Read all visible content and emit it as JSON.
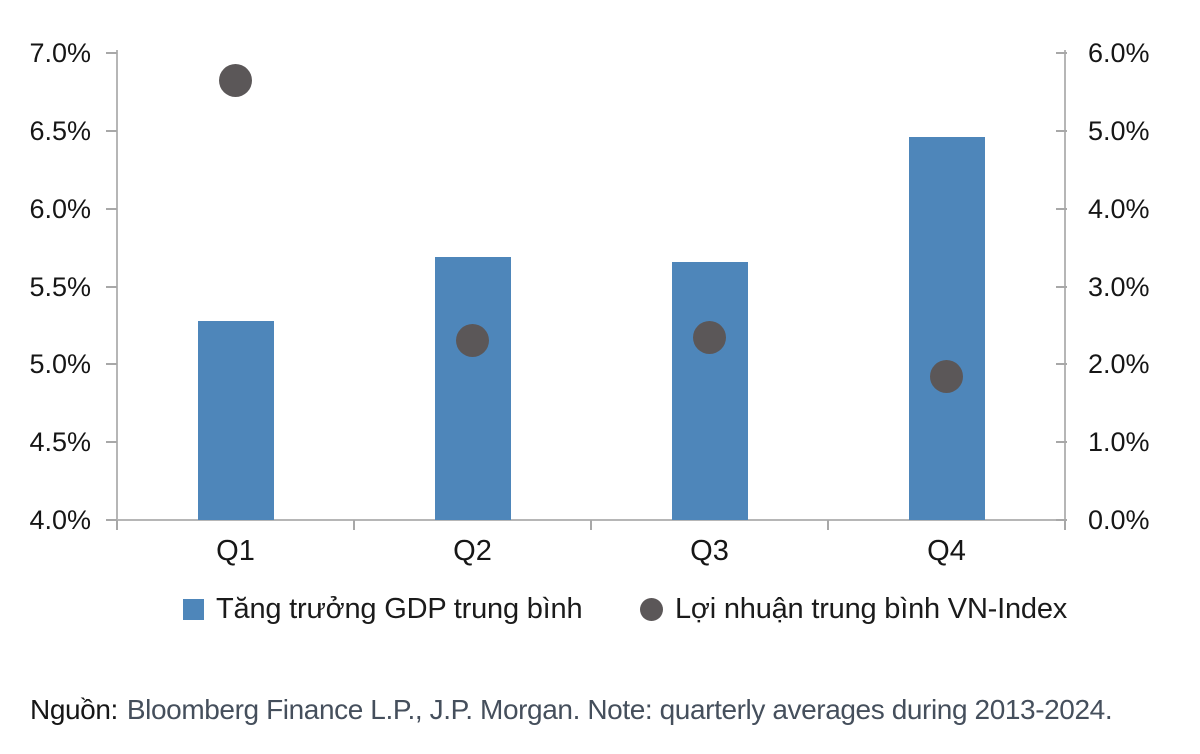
{
  "chart_data": {
    "type": "bar",
    "subtype": "combo-bar-scatter-dual-axis",
    "categories": [
      "Q1",
      "Q2",
      "Q3",
      "Q4"
    ],
    "series": [
      {
        "name": "Tăng trưởng GDP trung bình",
        "type": "bar",
        "axis": "left",
        "color": "#4e86ba",
        "values": [
          5.28,
          5.69,
          5.66,
          6.46
        ]
      },
      {
        "name": "Lợi nhuận trung bình VN-Index",
        "type": "scatter",
        "axis": "right",
        "color": "#5b5758",
        "values": [
          5.65,
          2.3,
          2.35,
          1.85
        ]
      }
    ],
    "left_axis": {
      "min": 4.0,
      "max": 7.0,
      "step": 0.5,
      "tick_labels": [
        "7.0%",
        "6.5%",
        "6.0%",
        "5.5%",
        "5.0%",
        "4.5%",
        "4.0%"
      ]
    },
    "right_axis": {
      "min": 0.0,
      "max": 6.0,
      "step": 1.0,
      "tick_labels": [
        "6.0%",
        "5.0%",
        "4.0%",
        "3.0%",
        "2.0%",
        "1.0%",
        "0.0%"
      ]
    },
    "grid": false,
    "legend_position": "bottom",
    "title": "",
    "xlabel": "",
    "ylabel": ""
  },
  "legend": {
    "items": [
      {
        "label": "Tăng trưởng GDP trung bình",
        "marker": "square",
        "color": "#4e86ba"
      },
      {
        "label": "Lợi nhuận trung bình VN-Index",
        "marker": "circle",
        "color": "#5b5758"
      }
    ]
  },
  "source": {
    "label": "Nguồn:",
    "text": "Bloomberg Finance L.P., J.P. Morgan. Note: quarterly averages during 2013-2024."
  },
  "colors": {
    "bar": "#4e86ba",
    "dot": "#5b5758",
    "axis_line": "#b6b6b6",
    "tick": "#a8a8a8",
    "axis_text": "#161616",
    "source_text": "#454f5c"
  }
}
